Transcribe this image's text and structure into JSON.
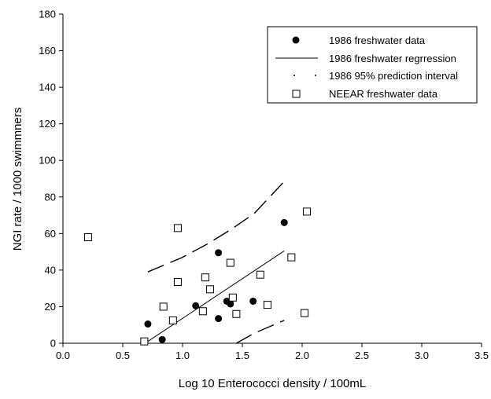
{
  "chart_data": {
    "type": "scatter",
    "title": "",
    "xlabel": "Log 10 Enterococci density / 100mL",
    "ylabel": "NGI rate / 1000 swimmners",
    "xlim": [
      0.0,
      3.5
    ],
    "ylim": [
      0,
      180
    ],
    "xticks": [
      "0.0",
      "0.5",
      "1.0",
      "1.5",
      "2.0",
      "2.5",
      "3.0",
      "3.5"
    ],
    "yticks": [
      "0",
      "20",
      "40",
      "60",
      "80",
      "100",
      "120",
      "140",
      "160",
      "180"
    ],
    "grid": false,
    "legend_position": "top-right",
    "series": [
      {
        "name": "1986 freshwater data",
        "kind": "points",
        "marker": "filled-circle",
        "points": [
          [
            0.71,
            10.5
          ],
          [
            0.83,
            2
          ],
          [
            1.11,
            20.5
          ],
          [
            1.3,
            49.5
          ],
          [
            1.3,
            13.5
          ],
          [
            1.37,
            23
          ],
          [
            1.4,
            21.5
          ],
          [
            1.59,
            23
          ],
          [
            1.85,
            66
          ]
        ]
      },
      {
        "name": "1986 freshwater regrression",
        "kind": "line",
        "style": "solid",
        "points": [
          [
            0.71,
            1
          ],
          [
            1.85,
            50.5
          ]
        ]
      },
      {
        "name": "1986 95% prediction interval",
        "kind": "line",
        "style": "long-dash",
        "segments": [
          [
            [
              0.71,
              39
            ],
            [
              1.0,
              47
            ],
            [
              1.2,
              54
            ],
            [
              1.4,
              62
            ],
            [
              1.6,
              71
            ],
            [
              1.85,
              88.5
            ]
          ],
          [
            [
              1.45,
              0
            ],
            [
              1.6,
              5.5
            ],
            [
              1.85,
              12.5
            ]
          ]
        ]
      },
      {
        "name": "NEEAR freshwater data",
        "kind": "points",
        "marker": "open-square",
        "points": [
          [
            0.21,
            58
          ],
          [
            0.68,
            1
          ],
          [
            0.84,
            20
          ],
          [
            0.92,
            12.5
          ],
          [
            0.96,
            63
          ],
          [
            0.96,
            33.5
          ],
          [
            1.17,
            17.5
          ],
          [
            1.19,
            36
          ],
          [
            1.23,
            29.5
          ],
          [
            1.4,
            44
          ],
          [
            1.42,
            25
          ],
          [
            1.45,
            16
          ],
          [
            1.65,
            37.5
          ],
          [
            1.71,
            21
          ],
          [
            1.91,
            47
          ],
          [
            2.02,
            16.5
          ],
          [
            2.04,
            72
          ]
        ]
      }
    ]
  }
}
